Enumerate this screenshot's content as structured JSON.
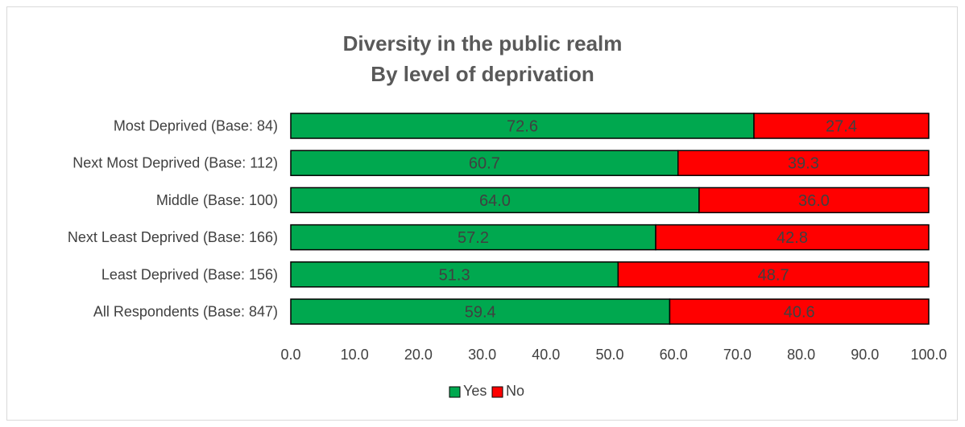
{
  "chart_data": {
    "type": "bar",
    "orientation": "horizontal",
    "stacked": true,
    "title": "Diversity in the public realm",
    "subtitle": "By level of deprivation",
    "categories": [
      "Most Deprived (Base: 84)",
      "Next Most Deprived (Base: 112)",
      "Middle (Base: 100)",
      "Next Least Deprived (Base: 166)",
      "Least Deprived (Base: 156)",
      "All Respondents (Base: 847)"
    ],
    "series": [
      {
        "name": "Yes",
        "color": "#00a84f",
        "values": [
          72.6,
          60.7,
          64.0,
          57.2,
          51.3,
          59.4
        ],
        "labels": [
          "72.6",
          "60.7",
          "64.0",
          "57.2",
          "51.3",
          "59.4"
        ]
      },
      {
        "name": "No",
        "color": "#ff0000",
        "values": [
          27.4,
          39.3,
          36.0,
          42.8,
          48.7,
          40.6
        ],
        "labels": [
          "27.4",
          "39.3",
          "36.0",
          "42.8",
          "48.7",
          "40.6"
        ]
      }
    ],
    "xlim": [
      0,
      100
    ],
    "xticks": [
      "0.0",
      "10.0",
      "20.0",
      "30.0",
      "40.0",
      "50.0",
      "60.0",
      "70.0",
      "80.0",
      "90.0",
      "100.0"
    ],
    "xlabel": "",
    "ylabel": "",
    "grid": false,
    "legend_position": "bottom"
  }
}
